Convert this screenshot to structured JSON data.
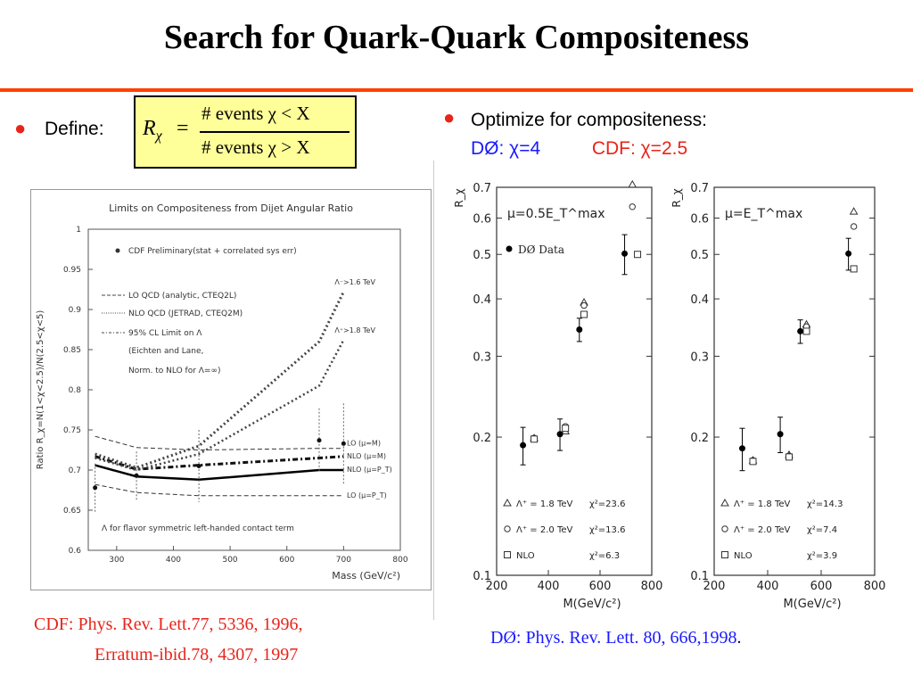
{
  "slide": {
    "title": "Search for Quark-Quark Compositeness",
    "define_label": "Define:",
    "formula": {
      "lhs": "R",
      "sub": "χ",
      "eq": "=",
      "numerator": "# events  χ < X",
      "denominator": "# events  χ > X"
    },
    "optimize_label": "Optimize for compositeness:",
    "d0_opt": "DØ: χ=4",
    "cdf_opt": "CDF: χ=2.5",
    "ref_cdf_line1": "CDF: Phys. Rev. Lett.77, 5336, 1996,",
    "ref_cdf_line2": "Erratum-ibid.78, 4307, 1997",
    "ref_d0": "DØ: Phys. Rev. Lett. 80, 666,1998",
    "ref_d0_suffix": ".",
    "colors": {
      "accent_red": "#e8241a",
      "rule": "#ff4000",
      "d0_blue": "#1a1aff",
      "highlight": "#ffff99"
    }
  },
  "chart_data": [
    {
      "type": "line",
      "title": "Limits on Compositeness from Dijet Angular Ratio",
      "xlabel": "Mass (GeV/c²)",
      "ylabel": "Ratio R_χ=N(1<χ<2.5)/N(2.5<χ<5)",
      "xlim": [
        250,
        800
      ],
      "ylim": [
        0.6,
        1.0
      ],
      "xticks": [
        300,
        400,
        500,
        600,
        700,
        800
      ],
      "yticks": [
        0.6,
        0.65,
        0.7,
        0.75,
        0.8,
        0.85,
        0.9,
        0.95,
        1.0
      ],
      "ytick_labels": [
        "0.6",
        "0.65",
        "0.7",
        "0.75",
        "0.8",
        "0.85",
        "0.9",
        "0.95",
        "1"
      ],
      "legend": [
        "CDF Preliminary(stat + correlated sys err)",
        "LO QCD (analytic, CTEQ2L)",
        "NLO QCD (JETRAD, CTEQ2M)",
        "95% CL Limit on Λ",
        "(Eichten and Lane,",
        "Norm. to NLO for Λ=∞)"
      ],
      "footnote": "Λ for flavor symmetric left-handed contact term",
      "data": {
        "x": [
          262,
          335,
          445,
          657,
          700
        ],
        "y": [
          0.678,
          0.693,
          0.705,
          0.737,
          0.733
        ],
        "err": [
          0.03,
          0.03,
          0.045,
          0.04,
          0.05
        ]
      },
      "series": [
        {
          "name": "LO (μ=M)",
          "x": [
            262,
            335,
            445,
            657,
            700
          ],
          "y": [
            0.742,
            0.728,
            0.725,
            0.727,
            0.727
          ]
        },
        {
          "name": "NLO (μ=M)",
          "x": [
            262,
            335,
            445,
            657,
            700
          ],
          "y": [
            0.717,
            0.701,
            0.706,
            0.715,
            0.717
          ]
        },
        {
          "name": "NLO (μ=P_T)",
          "x": [
            262,
            335,
            445,
            657,
            700
          ],
          "y": [
            0.706,
            0.692,
            0.688,
            0.7,
            0.7
          ]
        },
        {
          "name": "LO (μ=P_T)",
          "x": [
            262,
            335,
            445,
            657,
            700
          ],
          "y": [
            0.682,
            0.672,
            0.668,
            0.668,
            0.668
          ]
        },
        {
          "name": "Λ⁻>1.6 TeV",
          "x": [
            262,
            335,
            445,
            657,
            700
          ],
          "y": [
            0.72,
            0.703,
            0.73,
            0.86,
            0.922
          ]
        },
        {
          "name": "Λ⁺>1.8 TeV",
          "x": [
            262,
            335,
            445,
            657,
            700
          ],
          "y": [
            0.715,
            0.7,
            0.72,
            0.805,
            0.862
          ]
        }
      ]
    },
    {
      "type": "scatter",
      "annotation": "μ=0.5E_T^max",
      "xlabel": "M(GeV/c²)",
      "ylabel": "R_χ",
      "xlim": [
        200,
        800
      ],
      "ylim": [
        0.1,
        0.7
      ],
      "yscale": "log",
      "xticks": [
        200,
        400,
        600,
        800
      ],
      "yticks": [
        0.1,
        0.2,
        0.3,
        0.4,
        0.5,
        0.6,
        0.7
      ],
      "data_label": "DØ Data",
      "data": {
        "x": [
          302,
          445,
          520,
          695
        ],
        "y": [
          0.192,
          0.203,
          0.343,
          0.502
        ],
        "err": [
          0.018,
          0.016,
          0.02,
          0.05
        ]
      },
      "series": [
        {
          "name": "Λ⁺ = 1.8 TeV",
          "chi2": "χ²=23.6",
          "x": [
            345,
            466,
            538,
            725
          ],
          "y": [
            0.199,
            0.206,
            0.393,
            0.71
          ]
        },
        {
          "name": "Λ⁺ = 2.0 TeV",
          "chi2": "χ²=13.6",
          "x": [
            345,
            466,
            538,
            725
          ],
          "y": [
            0.199,
            0.211,
            0.387,
            0.635
          ]
        },
        {
          "name": "NLO",
          "chi2": "χ²=6.3",
          "x": [
            345,
            466,
            538,
            745
          ],
          "y": [
            0.198,
            0.209,
            0.37,
            0.5
          ]
        }
      ]
    },
    {
      "type": "scatter",
      "annotation": "μ=E_T^max",
      "xlabel": "M(GeV/c²)",
      "ylabel": "R_χ",
      "xlim": [
        200,
        800
      ],
      "ylim": [
        0.1,
        0.7
      ],
      "yscale": "log",
      "xticks": [
        200,
        400,
        600,
        800
      ],
      "yticks": [
        0.1,
        0.2,
        0.3,
        0.4,
        0.5,
        0.6,
        0.7
      ],
      "data": {
        "x": [
          305,
          447,
          522,
          702
        ],
        "y": [
          0.189,
          0.203,
          0.34,
          0.502
        ],
        "err": [
          0.02,
          0.018,
          0.02,
          0.04
        ]
      },
      "series": [
        {
          "name": "Λ⁺ = 1.8 TeV",
          "chi2": "χ²=14.3",
          "x": [
            345,
            480,
            545,
            722
          ],
          "y": [
            0.178,
            0.183,
            0.352,
            0.62
          ]
        },
        {
          "name": "Λ⁺ = 2.0 TeV",
          "chi2": "χ²=7.4",
          "x": [
            345,
            480,
            545,
            722
          ],
          "y": [
            0.178,
            0.182,
            0.348,
            0.575
          ]
        },
        {
          "name": "NLO",
          "chi2": "χ²=3.9",
          "x": [
            345,
            480,
            545,
            722
          ],
          "y": [
            0.177,
            0.181,
            0.34,
            0.465
          ]
        }
      ]
    }
  ]
}
